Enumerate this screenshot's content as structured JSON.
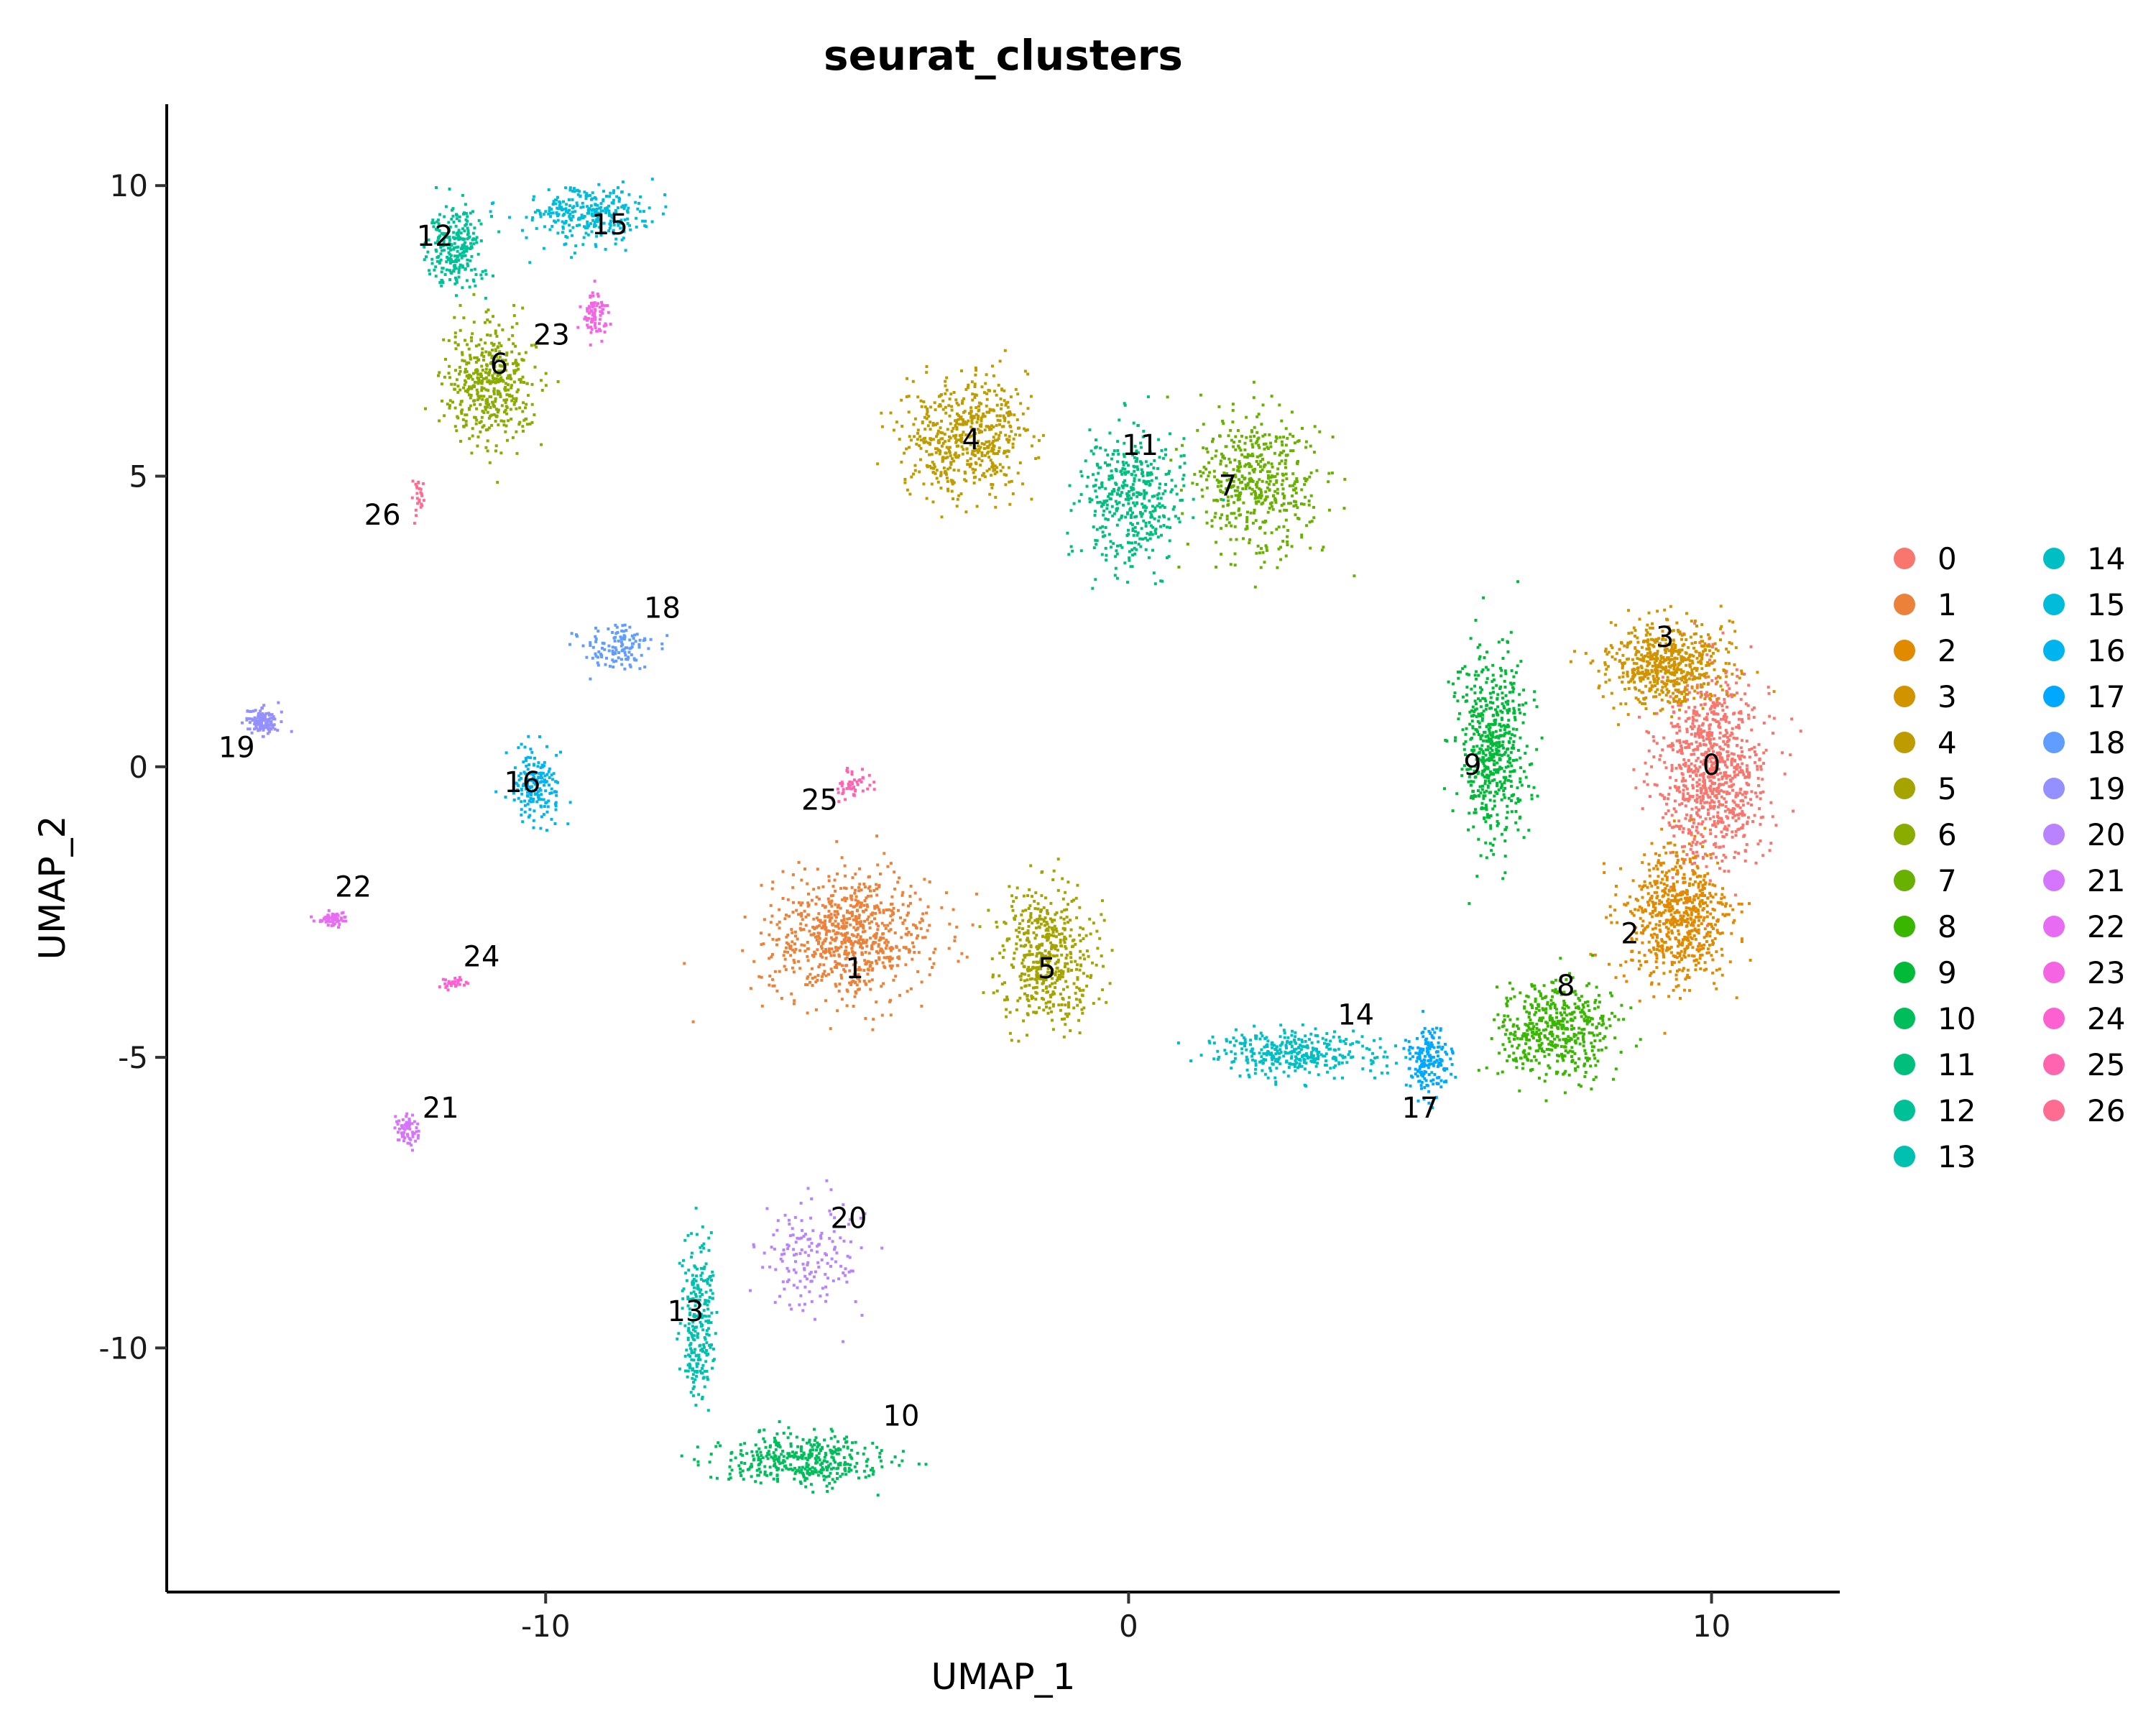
{
  "chart_data": {
    "type": "scatter",
    "title": "seurat_clusters",
    "xlabel": "UMAP_1",
    "ylabel": "UMAP_2",
    "xlim": [
      -16.5,
      12.2
    ],
    "ylim": [
      -14.2,
      11.4
    ],
    "x_ticks": [
      -10,
      0,
      10
    ],
    "x_tick_labels": [
      "-10",
      "0",
      "10"
    ],
    "y_ticks": [
      -10,
      -5,
      0,
      5,
      10
    ],
    "y_tick_labels": [
      "-10",
      "-5",
      "0",
      "5",
      "10"
    ],
    "grid": false,
    "legend_position": "right",
    "legend_columns": 2,
    "clusters": [
      {
        "name": "0",
        "color": "#F8766D",
        "center": [
          10.0,
          0.0
        ],
        "label_pos": [
          10.0,
          0.0
        ],
        "spread": [
          0.85,
          1.5
        ],
        "n": 900
      },
      {
        "name": "1",
        "color": "#EC8239",
        "center": [
          -4.8,
          -2.9
        ],
        "label_pos": [
          -4.7,
          -3.5
        ],
        "spread": [
          1.25,
          0.95
        ],
        "n": 750
      },
      {
        "name": "2",
        "color": "#E18A00",
        "center": [
          9.4,
          -2.6
        ],
        "label_pos": [
          8.6,
          -2.9
        ],
        "spread": [
          0.85,
          1.1
        ],
        "n": 650
      },
      {
        "name": "3",
        "color": "#D29300",
        "center": [
          9.2,
          1.8
        ],
        "label_pos": [
          9.2,
          2.2
        ],
        "spread": [
          0.9,
          0.65
        ],
        "n": 600
      },
      {
        "name": "4",
        "color": "#BE9C00",
        "center": [
          -2.8,
          5.7
        ],
        "label_pos": [
          -2.7,
          5.6
        ],
        "spread": [
          0.95,
          0.9
        ],
        "n": 550
      },
      {
        "name": "5",
        "color": "#A5A300",
        "center": [
          -1.4,
          -3.2
        ],
        "label_pos": [
          -1.4,
          -3.5
        ],
        "spread": [
          0.75,
          1.0
        ],
        "n": 500
      },
      {
        "name": "6",
        "color": "#8AAB00",
        "center": [
          -11.0,
          6.6
        ],
        "label_pos": [
          -10.8,
          6.9
        ],
        "spread": [
          0.7,
          0.9
        ],
        "n": 450
      },
      {
        "name": "7",
        "color": "#68B100",
        "center": [
          2.2,
          4.9
        ],
        "label_pos": [
          1.7,
          4.8
        ],
        "spread": [
          0.95,
          1.1
        ],
        "n": 480
      },
      {
        "name": "8",
        "color": "#38B600",
        "center": [
          7.3,
          -4.5
        ],
        "label_pos": [
          7.5,
          -3.8
        ],
        "spread": [
          0.9,
          0.75
        ],
        "n": 480
      },
      {
        "name": "9",
        "color": "#00BA38",
        "center": [
          6.2,
          0.3
        ],
        "label_pos": [
          5.9,
          0.0
        ],
        "spread": [
          0.55,
          1.5
        ],
        "n": 550
      },
      {
        "name": "10",
        "color": "#00BD5C",
        "center": [
          -5.6,
          -11.9
        ],
        "label_pos": [
          -3.9,
          -11.2
        ],
        "spread": [
          1.3,
          0.4
        ],
        "n": 380
      },
      {
        "name": "11",
        "color": "#00BF7D",
        "center": [
          0.0,
          4.6
        ],
        "label_pos": [
          0.2,
          5.5
        ],
        "spread": [
          0.8,
          1.0
        ],
        "n": 420
      },
      {
        "name": "12",
        "color": "#00C097",
        "center": [
          -11.6,
          9.0
        ],
        "label_pos": [
          -11.9,
          9.1
        ],
        "spread": [
          0.45,
          0.6
        ],
        "n": 250
      },
      {
        "name": "13",
        "color": "#00C0B0",
        "center": [
          -7.4,
          -9.5
        ],
        "label_pos": [
          -7.6,
          -9.4
        ],
        "spread": [
          0.25,
          1.2
        ],
        "n": 250
      },
      {
        "name": "14",
        "color": "#00BFC4",
        "center": [
          2.8,
          -4.9
        ],
        "label_pos": [
          3.9,
          -4.3
        ],
        "spread": [
          1.3,
          0.35
        ],
        "n": 350
      },
      {
        "name": "15",
        "color": "#00BBDA",
        "center": [
          -9.3,
          9.5
        ],
        "label_pos": [
          -8.9,
          9.3
        ],
        "spread": [
          1.0,
          0.45
        ],
        "n": 300
      },
      {
        "name": "16",
        "color": "#00B4EF",
        "center": [
          -10.2,
          -0.3
        ],
        "label_pos": [
          -10.4,
          -0.3
        ],
        "spread": [
          0.35,
          0.55
        ],
        "n": 180
      },
      {
        "name": "17",
        "color": "#00A8FF",
        "center": [
          5.1,
          -5.0
        ],
        "label_pos": [
          5.0,
          -5.9
        ],
        "spread": [
          0.35,
          0.55
        ],
        "n": 180
      },
      {
        "name": "18",
        "color": "#619CFF",
        "center": [
          -8.8,
          2.1
        ],
        "label_pos": [
          -8.0,
          2.7
        ],
        "spread": [
          0.6,
          0.35
        ],
        "n": 120
      },
      {
        "name": "19",
        "color": "#9590FF",
        "center": [
          -14.9,
          0.8
        ],
        "label_pos": [
          -15.3,
          0.3
        ],
        "spread": [
          0.25,
          0.2
        ],
        "n": 130
      },
      {
        "name": "20",
        "color": "#B983FF",
        "center": [
          -5.5,
          -8.5
        ],
        "label_pos": [
          -4.8,
          -7.8
        ],
        "spread": [
          0.8,
          0.9
        ],
        "n": 150
      },
      {
        "name": "21",
        "color": "#D575FE",
        "center": [
          -12.4,
          -6.2
        ],
        "label_pos": [
          -11.8,
          -5.9
        ],
        "spread": [
          0.2,
          0.25
        ],
        "n": 70
      },
      {
        "name": "22",
        "color": "#E76BF3",
        "center": [
          -13.7,
          -2.6
        ],
        "label_pos": [
          -13.3,
          -2.1
        ],
        "spread": [
          0.22,
          0.12
        ],
        "n": 60
      },
      {
        "name": "23",
        "color": "#F564E3",
        "center": [
          -9.2,
          7.8
        ],
        "label_pos": [
          -9.9,
          7.4
        ],
        "spread": [
          0.18,
          0.35
        ],
        "n": 80
      },
      {
        "name": "24",
        "color": "#FD61D1",
        "center": [
          -11.6,
          -3.7
        ],
        "label_pos": [
          -11.1,
          -3.3
        ],
        "spread": [
          0.18,
          0.1
        ],
        "n": 30
      },
      {
        "name": "25",
        "color": "#FF64B0",
        "center": [
          -4.8,
          -0.3
        ],
        "label_pos": [
          -5.3,
          -0.6
        ],
        "spread": [
          0.3,
          0.3
        ],
        "n": 50
      },
      {
        "name": "26",
        "color": "#FF6C91",
        "center": [
          -12.2,
          4.7
        ],
        "label_pos": [
          -12.8,
          4.3
        ],
        "spread": [
          0.12,
          0.3
        ],
        "n": 25
      }
    ]
  }
}
